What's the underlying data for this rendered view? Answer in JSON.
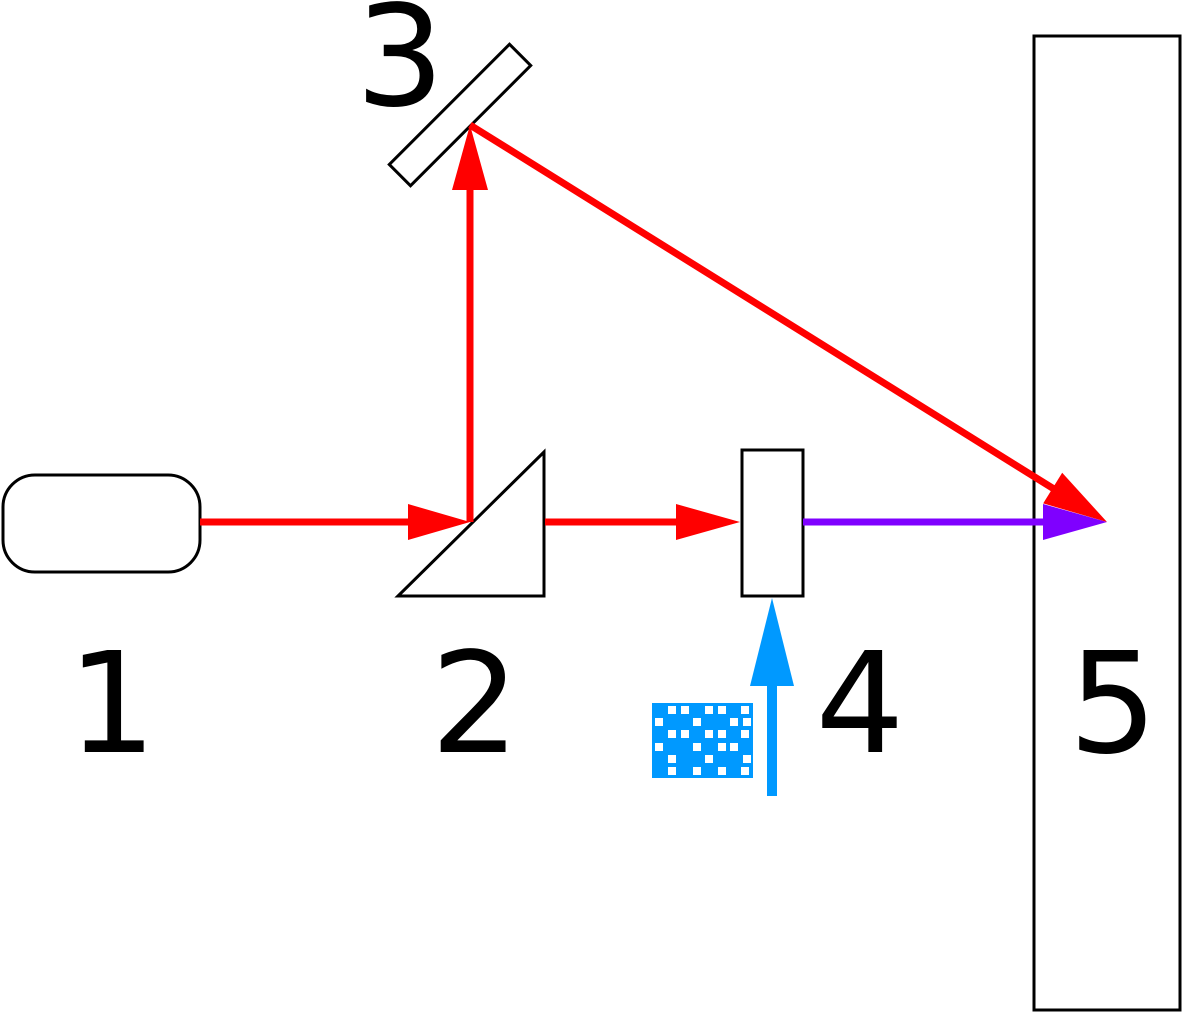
{
  "nodes": [
    {
      "label": "1"
    },
    {
      "label": "2"
    },
    {
      "label": "3"
    },
    {
      "label": "4"
    },
    {
      "label": "5"
    }
  ]
}
